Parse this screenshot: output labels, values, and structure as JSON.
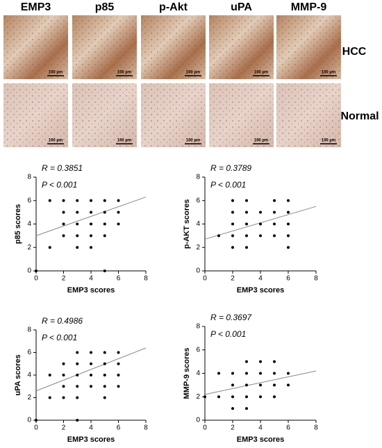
{
  "image_panel": {
    "columns": [
      "EMP3",
      "p85",
      "p-Akt",
      "uPA",
      "MMP-9"
    ],
    "rows": [
      "HCC",
      "Normal"
    ],
    "scale_bar_label": "100 µm"
  },
  "chart_data": [
    {
      "type": "scatter",
      "xlabel": "EMP3 scores",
      "ylabel": "p85 scores",
      "annotations": [
        "R = 0.3851",
        "P < 0.001"
      ],
      "x": [
        0,
        1,
        1,
        2,
        2,
        2,
        2,
        3,
        3,
        3,
        3,
        3,
        4,
        4,
        4,
        4,
        4,
        5,
        5,
        5,
        5,
        5,
        6,
        6,
        6
      ],
      "y": [
        0,
        2,
        6,
        6,
        5,
        4,
        3,
        6,
        5,
        4,
        3,
        2,
        6,
        5,
        4,
        3,
        2,
        6,
        5,
        4,
        3,
        0,
        6,
        5,
        4
      ],
      "xlim": [
        0,
        8
      ],
      "ylim": [
        0,
        8
      ],
      "xticks": [
        0,
        2,
        4,
        6,
        8
      ],
      "yticks": [
        0,
        2,
        4,
        6,
        8
      ],
      "color": "#000000",
      "fit": {
        "x": [
          0,
          8
        ],
        "y": [
          3.0,
          6.3
        ]
      }
    },
    {
      "type": "scatter",
      "xlabel": "EMP3 scores",
      "ylabel": "p-AKT scores",
      "annotations": [
        "R = 0.3789",
        "P < 0.001"
      ],
      "x": [
        1,
        2,
        2,
        2,
        2,
        2,
        3,
        3,
        3,
        3,
        3,
        4,
        4,
        4,
        5,
        5,
        5,
        5,
        6,
        6,
        6,
        6,
        6
      ],
      "y": [
        3,
        6,
        5,
        4,
        3,
        2,
        6,
        5,
        4,
        3,
        2,
        5,
        4,
        3,
        6,
        5,
        4,
        3,
        6,
        5,
        4,
        3,
        2
      ],
      "xlim": [
        0,
        8
      ],
      "ylim": [
        0,
        8
      ],
      "xticks": [
        0,
        2,
        4,
        6,
        8
      ],
      "yticks": [
        0,
        2,
        4,
        6,
        8
      ],
      "color": "#000000",
      "fit": {
        "x": [
          0,
          8
        ],
        "y": [
          2.7,
          5.5
        ]
      }
    },
    {
      "type": "scatter",
      "xlabel": "EMP3 scores",
      "ylabel": "uPA scores",
      "annotations": [
        "R = 0.4986",
        "P < 0.001"
      ],
      "x": [
        0,
        1,
        1,
        2,
        2,
        2,
        2,
        3,
        3,
        3,
        3,
        3,
        3,
        4,
        4,
        4,
        4,
        5,
        5,
        5,
        5,
        5,
        6,
        6,
        6,
        6
      ],
      "y": [
        0,
        4,
        2,
        5,
        4,
        3,
        2,
        6,
        5,
        4,
        3,
        2,
        0,
        6,
        5,
        4,
        3,
        6,
        5,
        4,
        3,
        2,
        6,
        5,
        4,
        3
      ],
      "xlim": [
        0,
        8
      ],
      "ylim": [
        0,
        8
      ],
      "xticks": [
        0,
        2,
        4,
        6,
        8
      ],
      "yticks": [
        0,
        2,
        4,
        6,
        8
      ],
      "color": "#000000",
      "fit": {
        "x": [
          0,
          8
        ],
        "y": [
          2.6,
          6.4
        ]
      }
    },
    {
      "type": "scatter",
      "xlabel": "EMP3 scores",
      "ylabel": "MMP-9 scores",
      "annotations": [
        "R = 0.3697",
        "P < 0.001"
      ],
      "x": [
        0,
        1,
        1,
        2,
        2,
        2,
        2,
        3,
        3,
        3,
        3,
        3,
        4,
        4,
        4,
        4,
        5,
        5,
        5,
        5,
        6,
        6
      ],
      "y": [
        2,
        4,
        2,
        4,
        3,
        2,
        1,
        5,
        4,
        3,
        2,
        1,
        5,
        4,
        3,
        2,
        5,
        4,
        3,
        2,
        4,
        3
      ],
      "xlim": [
        0,
        8
      ],
      "ylim": [
        0,
        8
      ],
      "xticks": [
        0,
        2,
        4,
        6,
        8
      ],
      "yticks": [
        0,
        2,
        4,
        6,
        8
      ],
      "color": "#000000",
      "fit": {
        "x": [
          0,
          8
        ],
        "y": [
          2.2,
          4.2
        ]
      }
    }
  ]
}
